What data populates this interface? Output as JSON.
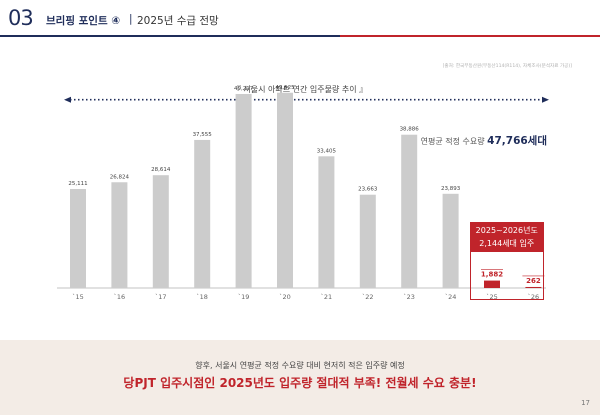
{
  "header": {
    "number": "03",
    "title": "브리핑 포인트 ④",
    "separator": "|",
    "subtitle": "2025년 수급 전망"
  },
  "source_note": "[출처: 한국부동산원(부동산114(R114), 자체조사(분석자료 가공)]",
  "chart": {
    "title": "『 서울시 아파트 연간 입주물량 추이 』",
    "avg_label": "연평균 적정 수요량",
    "avg_value": "47,766세대",
    "highlight_line1": "2025~2026년도",
    "highlight_line2": "2,144세대 입주"
  },
  "chart_data": {
    "type": "bar",
    "categories": [
      "`15",
      "`16",
      "`17",
      "`18",
      "`19",
      "`20",
      "`21",
      "`22",
      "`23",
      "`24",
      "`25",
      "`26"
    ],
    "values": [
      25111,
      26824,
      28614,
      37555,
      49217,
      49525,
      33405,
      23663,
      38886,
      23893,
      1882,
      262
    ],
    "labels": [
      "25,111",
      "26,824",
      "28,614",
      "37,555",
      "49,217",
      "49,525",
      "33,405",
      "23,663",
      "38,886",
      "23,893",
      "1,882",
      "262"
    ],
    "highlighted": [
      false,
      false,
      false,
      false,
      false,
      false,
      false,
      false,
      false,
      false,
      true,
      true
    ],
    "reference_line": 47766,
    "colors": {
      "normal": "#cccccc",
      "highlight": "#c0242b",
      "avg_line": "#1f2d5a"
    }
  },
  "bottom": {
    "line1": "향후, 서울시 연평균 적정 수요량 대비 현저히 적은 입주량 예정",
    "line2": "당PJT 입주시점인 2025년도 입주량 절대적 부족! 전월세 수요 충분!"
  },
  "page_number": "17"
}
